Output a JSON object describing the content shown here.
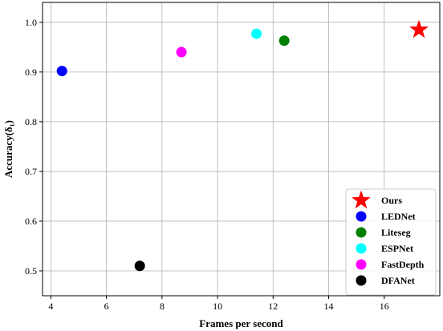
{
  "chart_data": {
    "type": "scatter",
    "xlabel": "Frames per second",
    "ylabel": "Accuracy(δ₁)",
    "xlim": [
      3.7,
      18.0
    ],
    "ylim": [
      0.45,
      1.04
    ],
    "xticks": [
      4,
      6,
      8,
      10,
      12,
      14,
      16
    ],
    "yticks": [
      0.5,
      0.6,
      0.7,
      0.8,
      0.9,
      1.0
    ],
    "xtick_labels": [
      "4",
      "6",
      "8",
      "10",
      "12",
      "14",
      "16"
    ],
    "ytick_labels": [
      "0.5",
      "0.6",
      "0.7",
      "0.8",
      "0.9",
      "1.0"
    ],
    "grid": true,
    "legend_position": "lower-right",
    "series": [
      {
        "name": "Ours",
        "x": 17.25,
        "y": 0.985,
        "color": "#ff0000",
        "marker": "star"
      },
      {
        "name": "LEDNet",
        "x": 4.4,
        "y": 0.902,
        "color": "#0000ff",
        "marker": "circle"
      },
      {
        "name": "Liteseg",
        "x": 12.4,
        "y": 0.963,
        "color": "#008000",
        "marker": "circle"
      },
      {
        "name": "ESPNet",
        "x": 11.4,
        "y": 0.977,
        "color": "#00ffff",
        "marker": "circle"
      },
      {
        "name": "FastDepth",
        "x": 8.7,
        "y": 0.94,
        "color": "#ff00ff",
        "marker": "circle"
      },
      {
        "name": "DFANet",
        "x": 7.2,
        "y": 0.51,
        "color": "#000000",
        "marker": "circle"
      }
    ]
  }
}
